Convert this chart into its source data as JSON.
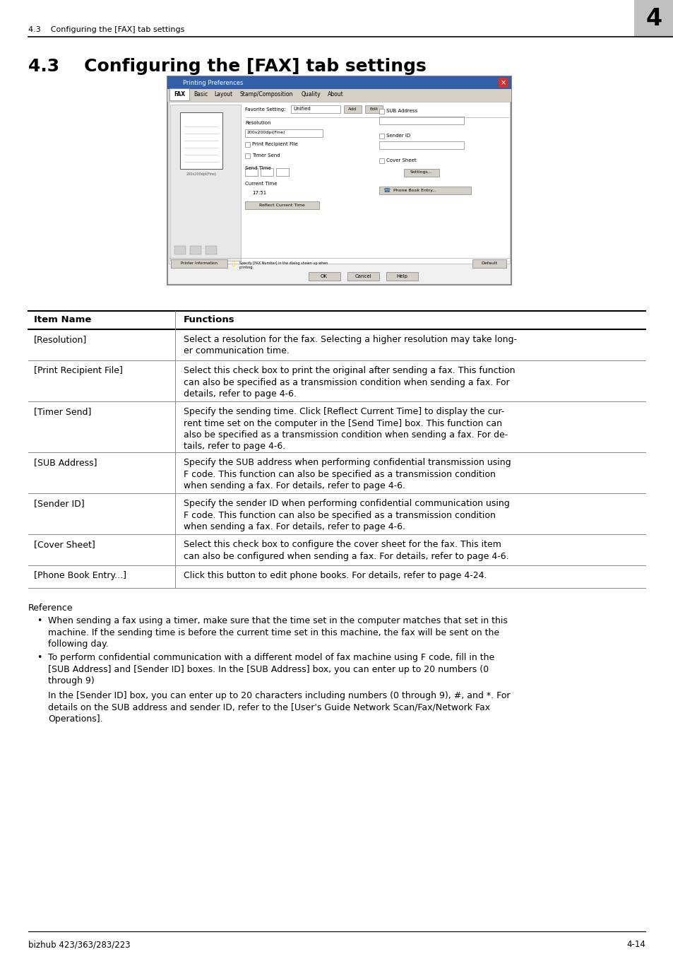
{
  "page_bg": "#ffffff",
  "header_text_left": "4.3    Configuring the [FAX] tab settings",
  "header_number": "4",
  "header_bg": "#c8c8c8",
  "title": "4.3    Configuring the [FAX] tab settings",
  "footer_left": "bizhub 423/363/283/223",
  "footer_right": "4-14",
  "table_header_col1": "Item Name",
  "table_header_col2": "Functions",
  "table_rows": [
    {
      "item": "[Resolution]",
      "func": "Select a resolution for the fax. Selecting a higher resolution may take long-\ner communication time."
    },
    {
      "item": "[Print Recipient File]",
      "func": "Select this check box to print the original after sending a fax. This function\ncan also be specified as a transmission condition when sending a fax. For\ndetails, refer to page 4-6."
    },
    {
      "item": "[Timer Send]",
      "func": "Specify the sending time. Click [Reflect Current Time] to display the cur-\nrent time set on the computer in the [Send Time] box. This function can\nalso be specified as a transmission condition when sending a fax. For de-\ntails, refer to page 4-6."
    },
    {
      "item": "[SUB Address]",
      "func": "Specify the SUB address when performing confidential transmission using\nF code. This function can also be specified as a transmission condition\nwhen sending a fax. For details, refer to page 4-6."
    },
    {
      "item": "[Sender ID]",
      "func": "Specify the sender ID when performing confidential communication using\nF code. This function can also be specified as a transmission condition\nwhen sending a fax. For details, refer to page 4-6."
    },
    {
      "item": "[Cover Sheet]",
      "func": "Select this check box to configure the cover sheet for the fax. This item\ncan also be configured when sending a fax. For details, refer to page 4-6."
    },
    {
      "item": "[Phone Book Entry...]",
      "func": "Click this button to edit phone books. For details, refer to page 4-24."
    }
  ],
  "reference_title": "Reference",
  "bullet1_text": "When sending a fax using a timer, make sure that the time set in the computer matches that set in this\nmachine. If the sending time is before the current time set in this machine, the fax will be sent on the\nfollowing day.",
  "bullet2_text": "To perform confidential communication with a different model of fax machine using F code, fill in the\n[SUB Address] and [Sender ID] boxes. In the [SUB Address] box, you can enter up to 20 numbers (0\nthrough 9)",
  "bullet2_continuation": "In the [Sender ID] box, you can enter up to 20 characters including numbers (0 through 9), #, and *. For\ndetails on the SUB address and sender ID, refer to the [User's Guide Network Scan/Fax/Network Fax\nOperations]."
}
